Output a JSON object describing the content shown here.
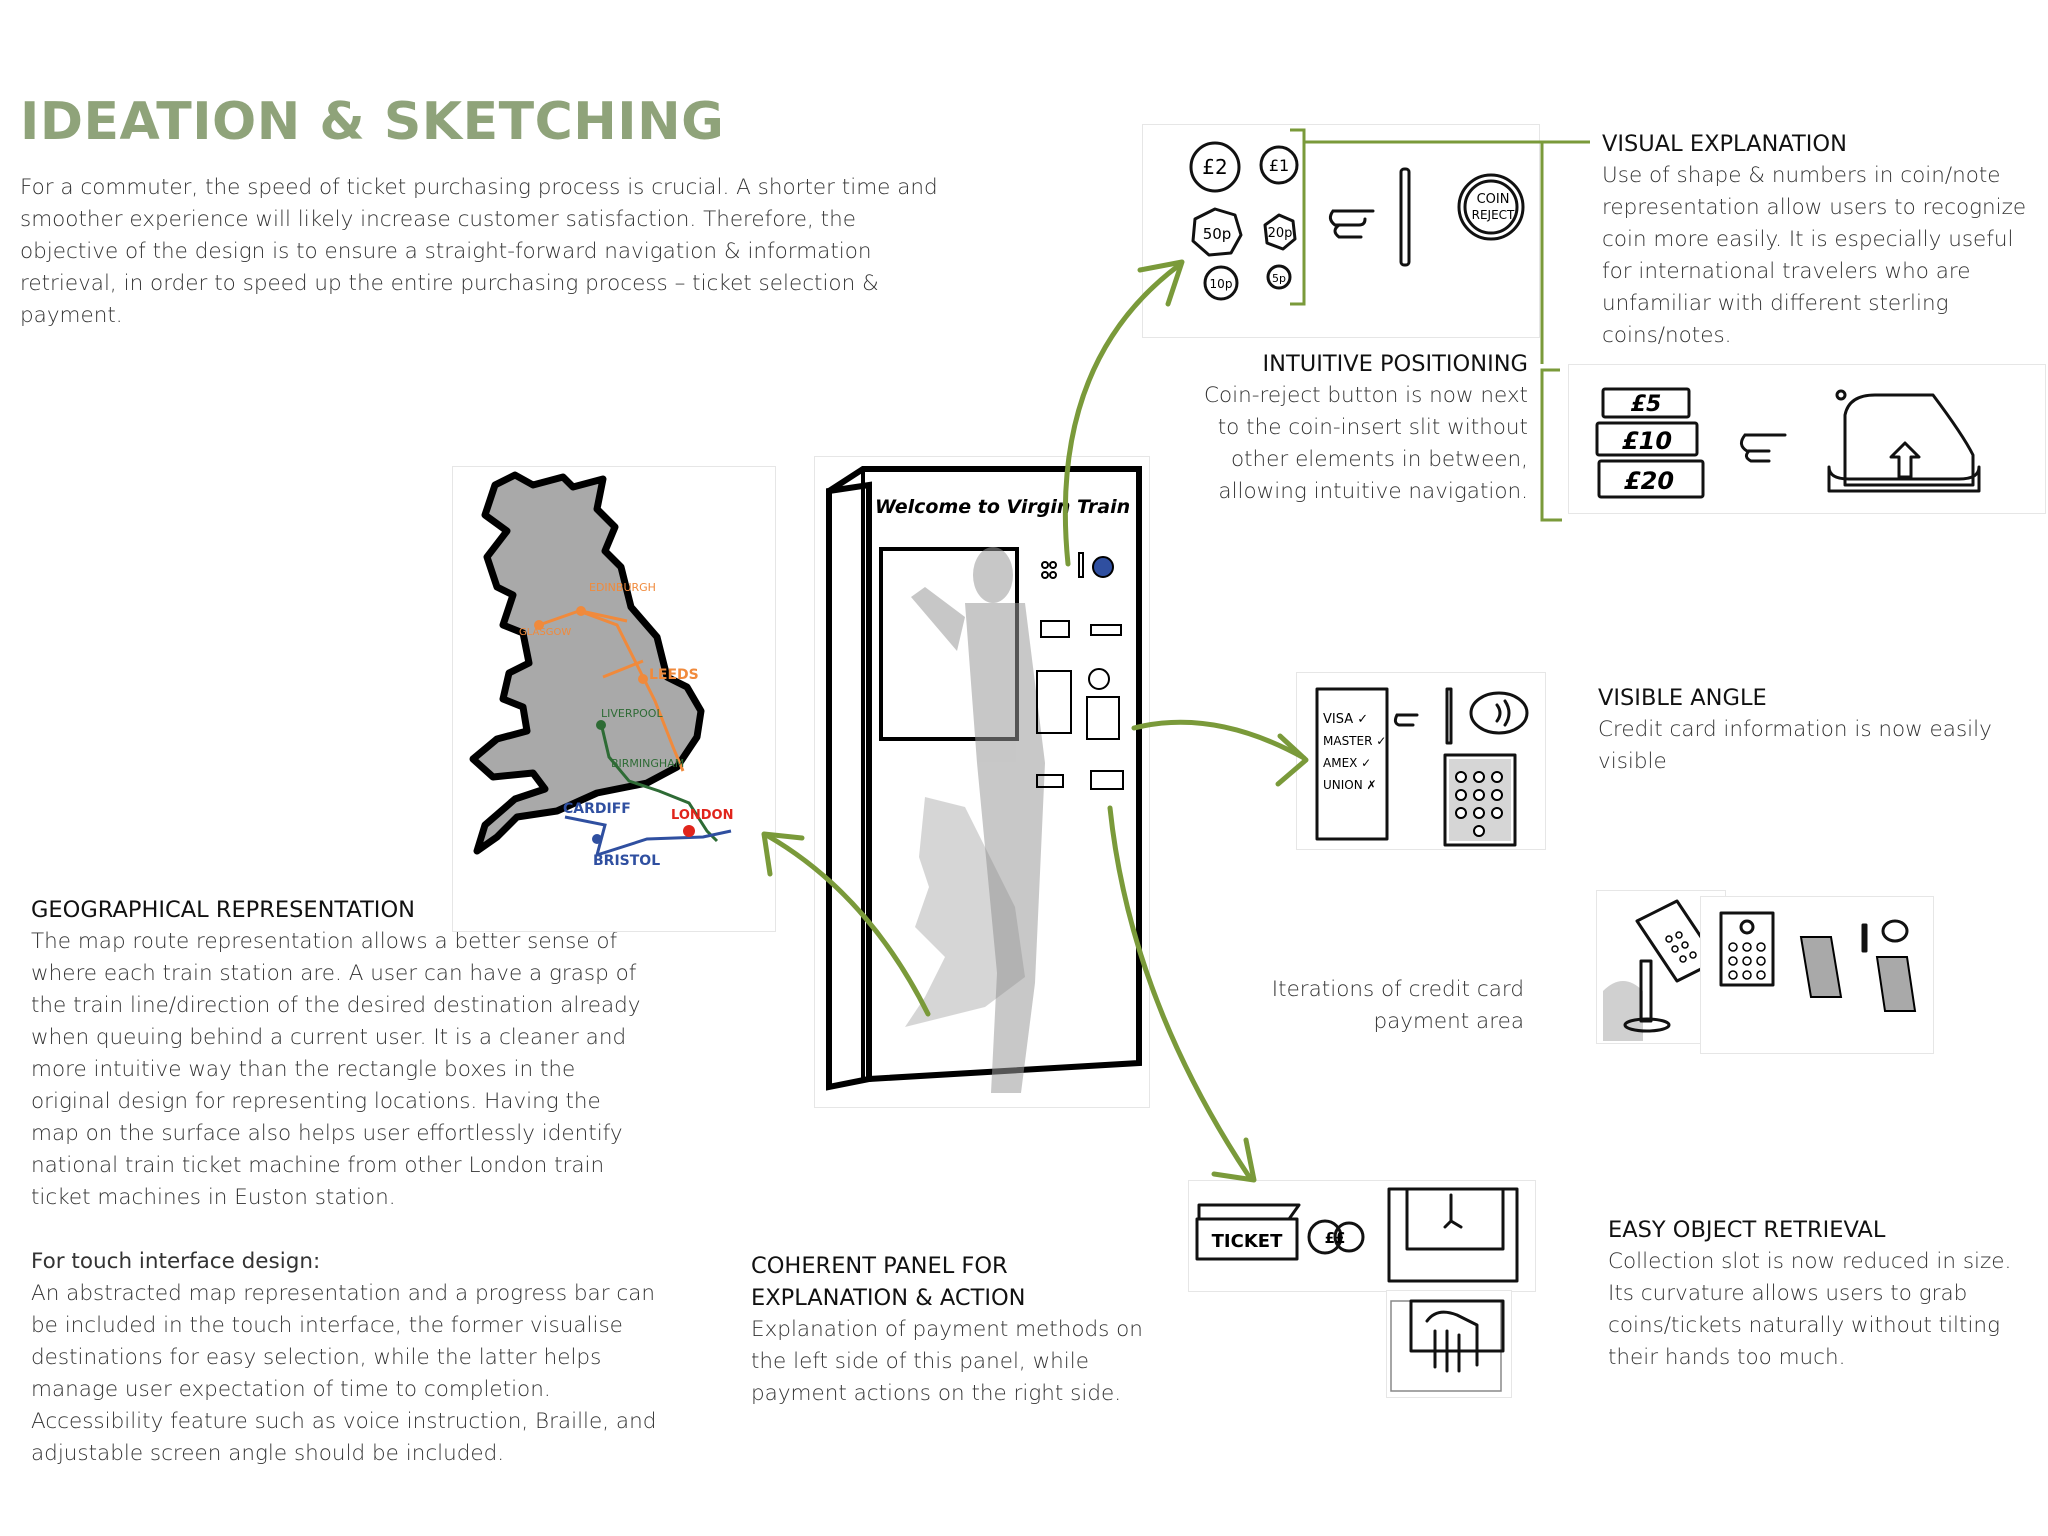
{
  "title": "IDEATION & SKETCHING",
  "intro": "For a commuter, the speed of ticket purchasing process is crucial. A shorter time and smoother experience will likely increase customer satisfaction. Therefore, the objective of the design is to ensure a straight-forward navigation & information retrieval, in order to speed up the entire purchasing process – ticket selection & payment.",
  "visual_explanation": {
    "heading": "VISUAL EXPLANATION",
    "text": "Use of shape & numbers in coin/note representation allow users to recognize coin more easily. It is especially useful for international travelers who are unfamiliar with different sterling coins/notes."
  },
  "intuitive_positioning": {
    "heading": "INTUITIVE POSITIONING",
    "text": "Coin-reject button is now next to the coin-insert slit without other elements in between, allowing intuitive navigation."
  },
  "visible_angle": {
    "heading": "VISIBLE ANGLE",
    "text": "Credit card information is now easily visible"
  },
  "iterations_caption": "Iterations of credit card payment area",
  "geographical": {
    "heading": "GEOGRAPHICAL REPRESENTATION",
    "text": "The map route representation allows a better sense of where each train station are. A user can have a grasp of the train line/direction of the desired destination already when queuing behind a current user. It is a cleaner and more intuitive way than the rectangle boxes in the original design for representing locations. Having the map on the surface also helps user effortlessly identify national train ticket machine from other London train ticket machines in Euston station.",
    "touch_heading": "For touch interface design:",
    "touch_text": "An abstracted map representation and a progress bar can be included in the touch interface, the former visualise destinations for easy selection, while the latter helps manage user expectation of time to completion. Accessibility feature such as voice instruction, Braille, and adjustable screen angle should be included."
  },
  "coherent_panel": {
    "heading_line1": "COHERENT PANEL FOR",
    "heading_line2": "EXPLANATION & ACTION",
    "text": "Explanation of payment methods on the left side of this panel, while payment actions on the right side."
  },
  "easy_retrieval": {
    "heading": "EASY OBJECT RETRIEVAL",
    "text": "Collection slot is now reduced in size. Its curvature allows users to grab coins/tickets naturally without tilting their hands too much."
  },
  "sketch_labels": {
    "coin_2": "£2",
    "coin_1": "£1",
    "coin_50": "50p",
    "coin_20": "20p",
    "coin_10": "10p",
    "coin_5": "5p",
    "coin_reject_1": "COIN",
    "coin_reject_2": "REJECT",
    "note_5": "£5",
    "note_10": "£10",
    "note_20": "£20",
    "welcome": "Welcome to Virgin Train",
    "card_visa": "VISA ✓",
    "card_master": "MASTER ✓",
    "card_amex": "AMEX ✓",
    "card_union": "UNION ✗",
    "ticket": "TICKET",
    "pounds": "££",
    "city_edinburgh": "EDINBURGH",
    "city_glasgow": "GLASGOW",
    "city_leeds": "LEEDS",
    "city_liverpool": "LIVERPOOL",
    "city_birmingham": "BIRMINGHAM",
    "city_cardiff": "CARDIFF",
    "city_london": "LONDON",
    "city_bristol": "BRISTOL"
  },
  "colors": {
    "title": "#8fa37a",
    "arrow": "#7a9a3a",
    "line_orange": "#f08a3c",
    "line_green": "#2e6b35",
    "line_blue": "#2f4fa0",
    "line_red": "#e0241b",
    "map_fill": "#a9a9a9"
  }
}
